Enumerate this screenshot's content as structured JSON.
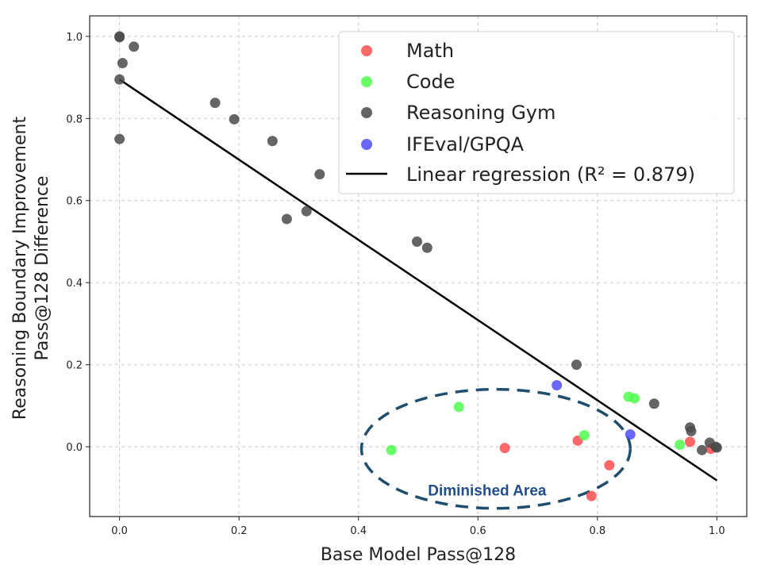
{
  "chart_data": {
    "type": "scatter",
    "title": "",
    "xlabel": "Base Model Pass@128",
    "ylabel": [
      "Reasoning Boundary Improvement",
      "Pass@128 Difference"
    ],
    "xlim": [
      -0.05,
      1.05
    ],
    "ylim": [
      -0.17,
      1.05
    ],
    "xticks": [
      0.0,
      0.2,
      0.4,
      0.6,
      0.8,
      1.0
    ],
    "xtick_labels": [
      "0.0",
      "0.2",
      "0.4",
      "0.6",
      "0.8",
      "1.0"
    ],
    "yticks": [
      0.0,
      0.2,
      0.4,
      0.6,
      0.8,
      1.0
    ],
    "ytick_labels": [
      "0.0",
      "0.2",
      "0.4",
      "0.6",
      "0.8",
      "1.0"
    ],
    "grid": true,
    "legend_position": "top-right",
    "series": [
      {
        "name": "Math",
        "color": "#ff4d4d",
        "points": [
          [
            0.645,
            -0.003
          ],
          [
            0.767,
            0.015
          ],
          [
            0.82,
            -0.045
          ],
          [
            0.79,
            -0.12
          ],
          [
            0.955,
            0.012
          ],
          [
            0.99,
            -0.005
          ]
        ]
      },
      {
        "name": "Code",
        "color": "#4dff4d",
        "points": [
          [
            0.455,
            -0.008
          ],
          [
            0.568,
            0.097
          ],
          [
            0.778,
            0.028
          ],
          [
            0.852,
            0.122
          ],
          [
            0.862,
            0.118
          ],
          [
            0.938,
            0.005
          ]
        ]
      },
      {
        "name": "Reasoning Gym",
        "color": "#4a4a4a",
        "points": [
          [
            0.0,
            1.0
          ],
          [
            0.0,
            0.998
          ],
          [
            0.005,
            0.935
          ],
          [
            0.024,
            0.975
          ],
          [
            0.0,
            0.895
          ],
          [
            0.0,
            0.75
          ],
          [
            0.16,
            0.838
          ],
          [
            0.192,
            0.798
          ],
          [
            0.256,
            0.745
          ],
          [
            0.28,
            0.555
          ],
          [
            0.313,
            0.574
          ],
          [
            0.335,
            0.664
          ],
          [
            0.498,
            0.5
          ],
          [
            0.515,
            0.485
          ],
          [
            0.765,
            0.2
          ],
          [
            0.895,
            0.105
          ],
          [
            0.955,
            0.047
          ],
          [
            0.957,
            0.038
          ],
          [
            0.975,
            -0.008
          ],
          [
            0.988,
            0.01
          ],
          [
            1.0,
            -0.002
          ],
          [
            0.998,
            0.0
          ]
        ]
      },
      {
        "name": "IFEval/GPQA",
        "color": "#4d4dff",
        "points": [
          [
            0.732,
            0.15
          ],
          [
            0.855,
            0.03
          ]
        ]
      }
    ],
    "regression": {
      "label": "Linear regression (R² = 0.879)",
      "color": "#000000",
      "x": [
        0.0,
        1.0
      ],
      "y": [
        0.895,
        -0.082
      ]
    },
    "annotation": {
      "text": "Diminished Area",
      "shape": "dashed-ellipse",
      "color": "#1f4e6e",
      "center": [
        0.63,
        -0.005
      ],
      "x_radius": 0.225,
      "y_radius": 0.145
    }
  }
}
